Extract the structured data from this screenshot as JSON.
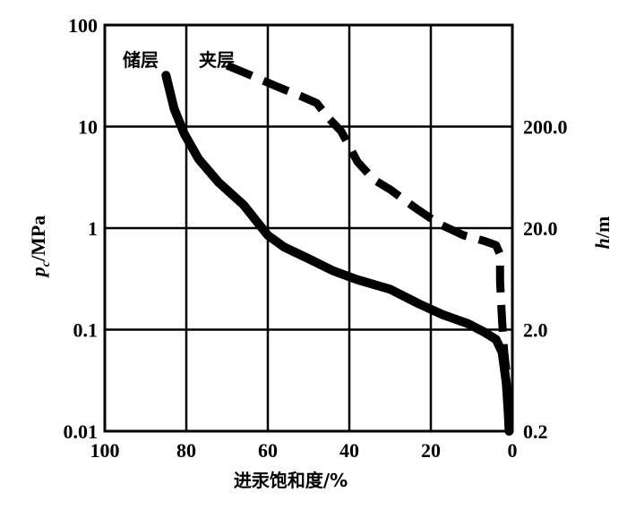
{
  "chart_data": {
    "type": "line",
    "x_axis": {
      "label": "进汞饱和度/%",
      "range": [
        100,
        0
      ],
      "ticks": [
        100,
        80,
        60,
        40,
        20,
        0
      ],
      "tick_labels": [
        "100",
        "80",
        "60",
        "40",
        "20",
        "0"
      ]
    },
    "y_axis_left": {
      "label_main": "p",
      "label_sub": "c",
      "label_suffix": "/MPa",
      "scale": "log",
      "range": [
        0.01,
        100
      ],
      "ticks": [
        0.01,
        0.1,
        1,
        10,
        100
      ],
      "tick_labels": [
        "0.01",
        "0.1",
        "1",
        "10",
        "100"
      ]
    },
    "y_axis_right": {
      "label_main": "h",
      "label_suffix": "/m",
      "scale": "log",
      "ticks_at_left_values": [
        0.01,
        0.1,
        1,
        10
      ],
      "tick_labels": [
        "0.2",
        "2.0",
        "20.0",
        "200.0"
      ]
    },
    "grid": true,
    "series": [
      {
        "name": "储层",
        "style": "solid",
        "color": "#000000",
        "points": [
          [
            85,
            32
          ],
          [
            83,
            15
          ],
          [
            80.5,
            8.5
          ],
          [
            77,
            4.8
          ],
          [
            72,
            2.8
          ],
          [
            66,
            1.7
          ],
          [
            63,
            1.2
          ],
          [
            60,
            0.85
          ],
          [
            56,
            0.65
          ],
          [
            50,
            0.5
          ],
          [
            44,
            0.38
          ],
          [
            38,
            0.31
          ],
          [
            30,
            0.25
          ],
          [
            23,
            0.18
          ],
          [
            17,
            0.14
          ],
          [
            11,
            0.115
          ],
          [
            7,
            0.095
          ],
          [
            4,
            0.08
          ],
          [
            2.5,
            0.06
          ],
          [
            1.5,
            0.03
          ],
          [
            1,
            0.015
          ],
          [
            0.8,
            0.01
          ]
        ]
      },
      {
        "name": "夹层",
        "style": "dashed",
        "color": "#000000",
        "points": [
          [
            70,
            40
          ],
          [
            65,
            33
          ],
          [
            58,
            25
          ],
          [
            52,
            20
          ],
          [
            48,
            17
          ],
          [
            45,
            12
          ],
          [
            42,
            9
          ],
          [
            38,
            4.5
          ],
          [
            34,
            3
          ],
          [
            30,
            2.4
          ],
          [
            24,
            1.6
          ],
          [
            18,
            1.1
          ],
          [
            12,
            0.85
          ],
          [
            7,
            0.75
          ],
          [
            4,
            0.68
          ],
          [
            3,
            0.55
          ],
          [
            3,
            0.3
          ],
          [
            2.5,
            0.12
          ],
          [
            2,
            0.06
          ],
          [
            1.5,
            0.04
          ]
        ]
      }
    ]
  }
}
